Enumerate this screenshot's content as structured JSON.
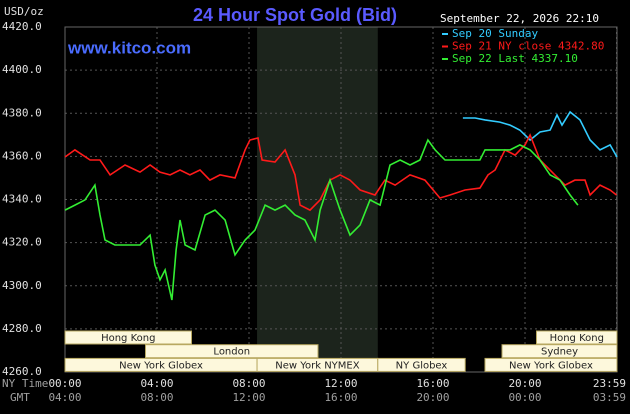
{
  "chart_data": {
    "type": "line",
    "title": "24 Hour Spot Gold (Bid)",
    "source": "www.kitco.com",
    "unit_label": "USD/oz",
    "timestamp": "September 22, 2026 22:10",
    "x_row_labels": [
      "NY Time",
      "GMT"
    ],
    "xlim": [
      0,
      24
    ],
    "xticks": [
      {
        "value": 0,
        "label": "00:00"
      },
      {
        "value": 4,
        "label": "04:00"
      },
      {
        "value": 8,
        "label": "08:00"
      },
      {
        "value": 12,
        "label": "12:00"
      },
      {
        "value": 16,
        "label": "16:00"
      },
      {
        "value": 20,
        "label": "20:00"
      },
      {
        "value": 23.98,
        "label": "23:59"
      }
    ],
    "gmt_labels": [
      "04:00",
      "08:00",
      "12:00",
      "16:00",
      "20:00",
      "00:00",
      "03:59"
    ],
    "ylim": [
      4260,
      4420
    ],
    "yticks": [
      {
        "value": 4260,
        "label": "4260.0"
      },
      {
        "value": 4280,
        "label": "4280.0"
      },
      {
        "value": 4300,
        "label": "4300.0"
      },
      {
        "value": 4320,
        "label": "4320.0"
      },
      {
        "value": 4340,
        "label": "4340.0"
      },
      {
        "value": 4360,
        "label": "4360.0"
      },
      {
        "value": 4380,
        "label": "4380.0"
      },
      {
        "value": 4400,
        "label": "4400.0"
      },
      {
        "value": 4420,
        "label": "4420.0"
      }
    ],
    "grid": true,
    "series": [
      {
        "name": "Sep 20 Sunday",
        "color": "#33ccff",
        "x": [
          17.3,
          17.83,
          18.26,
          18.91,
          19.35,
          19.78,
          20.22,
          20.65,
          21.09,
          21.39,
          21.61,
          21.96,
          22.39,
          22.83,
          23.26,
          23.7,
          24.0
        ],
        "values": [
          4377.8,
          4377.8,
          4376.9,
          4375.9,
          4374.5,
          4372.2,
          4367.6,
          4371.3,
          4372.2,
          4379.2,
          4374.5,
          4380.6,
          4376.9,
          4367.6,
          4363.0,
          4365.3,
          4359.7
        ]
      },
      {
        "name": "Sep 21 NY close 4342.80",
        "color": "#ff1a1a",
        "x": [
          0,
          0.43,
          1.09,
          1.52,
          1.96,
          2.61,
          3.26,
          3.7,
          4.13,
          4.57,
          5.0,
          5.43,
          5.87,
          6.3,
          6.74,
          7.39,
          7.83,
          8.04,
          8.39,
          8.57,
          9.13,
          9.57,
          10.0,
          10.22,
          10.65,
          11.09,
          11.52,
          11.96,
          12.39,
          12.83,
          13.48,
          13.91,
          14.35,
          15.0,
          15.65,
          16.3,
          16.74,
          17.39,
          18.04,
          18.39,
          18.7,
          19.13,
          19.57,
          20.0,
          20.22,
          20.65,
          21.3,
          21.74,
          22.17,
          22.61,
          22.83,
          23.26,
          23.7,
          23.98
        ],
        "values": [
          4359.7,
          4363.0,
          4358.3,
          4358.3,
          4351.4,
          4356.0,
          4352.7,
          4356.0,
          4352.7,
          4351.4,
          4353.7,
          4351.4,
          4353.7,
          4349.0,
          4351.4,
          4350.0,
          4363.0,
          4367.6,
          4368.5,
          4358.3,
          4357.4,
          4363.0,
          4351.4,
          4337.4,
          4335.1,
          4339.8,
          4349.0,
          4351.4,
          4349.0,
          4344.4,
          4342.1,
          4349.0,
          4346.7,
          4351.4,
          4349.0,
          4340.7,
          4342.1,
          4344.4,
          4345.3,
          4351.4,
          4353.7,
          4363.0,
          4360.6,
          4365.3,
          4369.9,
          4358.3,
          4351.4,
          4346.7,
          4349.0,
          4349.0,
          4342.1,
          4346.7,
          4344.4,
          4342.1
        ]
      },
      {
        "name": "Sep 22 Last 4337.10",
        "color": "#33ee33",
        "x": [
          0,
          0.43,
          0.87,
          1.3,
          1.52,
          1.74,
          2.17,
          2.61,
          3.26,
          3.7,
          3.91,
          4.13,
          4.35,
          4.65,
          4.83,
          5.0,
          5.22,
          5.65,
          6.09,
          6.52,
          6.96,
          7.39,
          7.83,
          8.26,
          8.7,
          9.13,
          9.57,
          10.0,
          10.43,
          10.87,
          11.09,
          11.52,
          11.96,
          12.39,
          12.83,
          13.26,
          13.7,
          14.13,
          14.57,
          15.0,
          15.43,
          15.78,
          16.09,
          16.52,
          17.61,
          18.04,
          18.26,
          18.91,
          19.35,
          19.78,
          20.22,
          20.65,
          21.09,
          21.52,
          21.96,
          22.3
        ],
        "values": [
          4335.1,
          4337.4,
          4339.8,
          4346.7,
          4332.8,
          4321.2,
          4318.9,
          4318.9,
          4318.9,
          4323.5,
          4309.6,
          4302.7,
          4307.3,
          4293.4,
          4316.6,
          4330.5,
          4318.9,
          4316.6,
          4332.8,
          4335.1,
          4330.5,
          4314.3,
          4321.2,
          4325.8,
          4337.4,
          4335.1,
          4337.4,
          4332.8,
          4330.5,
          4321.2,
          4335.1,
          4349.0,
          4335.1,
          4323.5,
          4328.2,
          4339.8,
          4337.4,
          4356.0,
          4358.3,
          4356.0,
          4358.3,
          4367.6,
          4363.0,
          4358.3,
          4358.3,
          4358.3,
          4363.0,
          4363.0,
          4363.0,
          4365.3,
          4363.0,
          4358.3,
          4351.4,
          4349.0,
          4342.1,
          4337.4
        ]
      }
    ],
    "sessions": [
      [
        {
          "label": "Hong Kong",
          "start": 0,
          "end": 5.5
        },
        {
          "label": "Hong Kong",
          "start": 20.5,
          "end": 24
        }
      ],
      [
        {
          "label": "London",
          "start": 3.5,
          "end": 11
        },
        {
          "label": "Sydney",
          "start": 19,
          "end": 24
        }
      ],
      [
        {
          "label": "New York Globex",
          "start": 0,
          "end": 8.35
        },
        {
          "label": "New York NYMEX",
          "start": 8.35,
          "end": 13.6
        },
        {
          "label": "NY Globex",
          "start": 13.6,
          "end": 17.4
        },
        {
          "label": "New York Globex",
          "start": 18.26,
          "end": 24
        }
      ]
    ]
  }
}
